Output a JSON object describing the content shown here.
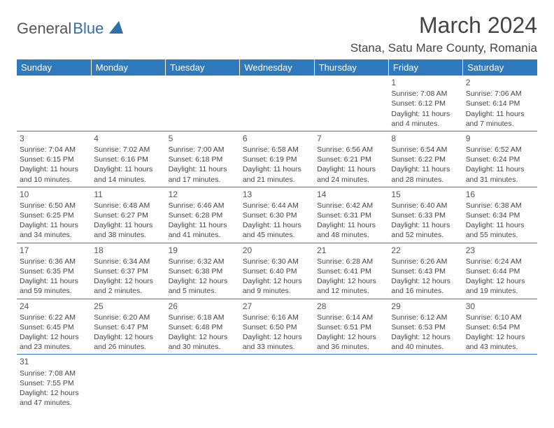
{
  "logo": {
    "part1": "General",
    "part2": "Blue"
  },
  "title": "March 2024",
  "location": "Stana, Satu Mare County, Romania",
  "colors": {
    "header_bg": "#2f79bd",
    "header_text": "#ffffff",
    "body_text": "#444444",
    "rule": "#2f79bd",
    "logo_gray": "#555555",
    "logo_blue": "#2f6fab"
  },
  "weekdays": [
    "Sunday",
    "Monday",
    "Tuesday",
    "Wednesday",
    "Thursday",
    "Friday",
    "Saturday"
  ],
  "weeks": [
    [
      null,
      null,
      null,
      null,
      null,
      {
        "n": "1",
        "sr": "7:08 AM",
        "ss": "6:12 PM",
        "dl": "11 hours and 4 minutes."
      },
      {
        "n": "2",
        "sr": "7:06 AM",
        "ss": "6:14 PM",
        "dl": "11 hours and 7 minutes."
      }
    ],
    [
      {
        "n": "3",
        "sr": "7:04 AM",
        "ss": "6:15 PM",
        "dl": "11 hours and 10 minutes."
      },
      {
        "n": "4",
        "sr": "7:02 AM",
        "ss": "6:16 PM",
        "dl": "11 hours and 14 minutes."
      },
      {
        "n": "5",
        "sr": "7:00 AM",
        "ss": "6:18 PM",
        "dl": "11 hours and 17 minutes."
      },
      {
        "n": "6",
        "sr": "6:58 AM",
        "ss": "6:19 PM",
        "dl": "11 hours and 21 minutes."
      },
      {
        "n": "7",
        "sr": "6:56 AM",
        "ss": "6:21 PM",
        "dl": "11 hours and 24 minutes."
      },
      {
        "n": "8",
        "sr": "6:54 AM",
        "ss": "6:22 PM",
        "dl": "11 hours and 28 minutes."
      },
      {
        "n": "9",
        "sr": "6:52 AM",
        "ss": "6:24 PM",
        "dl": "11 hours and 31 minutes."
      }
    ],
    [
      {
        "n": "10",
        "sr": "6:50 AM",
        "ss": "6:25 PM",
        "dl": "11 hours and 34 minutes."
      },
      {
        "n": "11",
        "sr": "6:48 AM",
        "ss": "6:27 PM",
        "dl": "11 hours and 38 minutes."
      },
      {
        "n": "12",
        "sr": "6:46 AM",
        "ss": "6:28 PM",
        "dl": "11 hours and 41 minutes."
      },
      {
        "n": "13",
        "sr": "6:44 AM",
        "ss": "6:30 PM",
        "dl": "11 hours and 45 minutes."
      },
      {
        "n": "14",
        "sr": "6:42 AM",
        "ss": "6:31 PM",
        "dl": "11 hours and 48 minutes."
      },
      {
        "n": "15",
        "sr": "6:40 AM",
        "ss": "6:33 PM",
        "dl": "11 hours and 52 minutes."
      },
      {
        "n": "16",
        "sr": "6:38 AM",
        "ss": "6:34 PM",
        "dl": "11 hours and 55 minutes."
      }
    ],
    [
      {
        "n": "17",
        "sr": "6:36 AM",
        "ss": "6:35 PM",
        "dl": "11 hours and 59 minutes."
      },
      {
        "n": "18",
        "sr": "6:34 AM",
        "ss": "6:37 PM",
        "dl": "12 hours and 2 minutes."
      },
      {
        "n": "19",
        "sr": "6:32 AM",
        "ss": "6:38 PM",
        "dl": "12 hours and 5 minutes."
      },
      {
        "n": "20",
        "sr": "6:30 AM",
        "ss": "6:40 PM",
        "dl": "12 hours and 9 minutes."
      },
      {
        "n": "21",
        "sr": "6:28 AM",
        "ss": "6:41 PM",
        "dl": "12 hours and 12 minutes."
      },
      {
        "n": "22",
        "sr": "6:26 AM",
        "ss": "6:43 PM",
        "dl": "12 hours and 16 minutes."
      },
      {
        "n": "23",
        "sr": "6:24 AM",
        "ss": "6:44 PM",
        "dl": "12 hours and 19 minutes."
      }
    ],
    [
      {
        "n": "24",
        "sr": "6:22 AM",
        "ss": "6:45 PM",
        "dl": "12 hours and 23 minutes."
      },
      {
        "n": "25",
        "sr": "6:20 AM",
        "ss": "6:47 PM",
        "dl": "12 hours and 26 minutes."
      },
      {
        "n": "26",
        "sr": "6:18 AM",
        "ss": "6:48 PM",
        "dl": "12 hours and 30 minutes."
      },
      {
        "n": "27",
        "sr": "6:16 AM",
        "ss": "6:50 PM",
        "dl": "12 hours and 33 minutes."
      },
      {
        "n": "28",
        "sr": "6:14 AM",
        "ss": "6:51 PM",
        "dl": "12 hours and 36 minutes."
      },
      {
        "n": "29",
        "sr": "6:12 AM",
        "ss": "6:53 PM",
        "dl": "12 hours and 40 minutes."
      },
      {
        "n": "30",
        "sr": "6:10 AM",
        "ss": "6:54 PM",
        "dl": "12 hours and 43 minutes."
      }
    ],
    [
      {
        "n": "31",
        "sr": "7:08 AM",
        "ss": "7:55 PM",
        "dl": "12 hours and 47 minutes."
      },
      null,
      null,
      null,
      null,
      null,
      null
    ]
  ],
  "labels": {
    "sunrise": "Sunrise:",
    "sunset": "Sunset:",
    "daylight": "Daylight:"
  }
}
